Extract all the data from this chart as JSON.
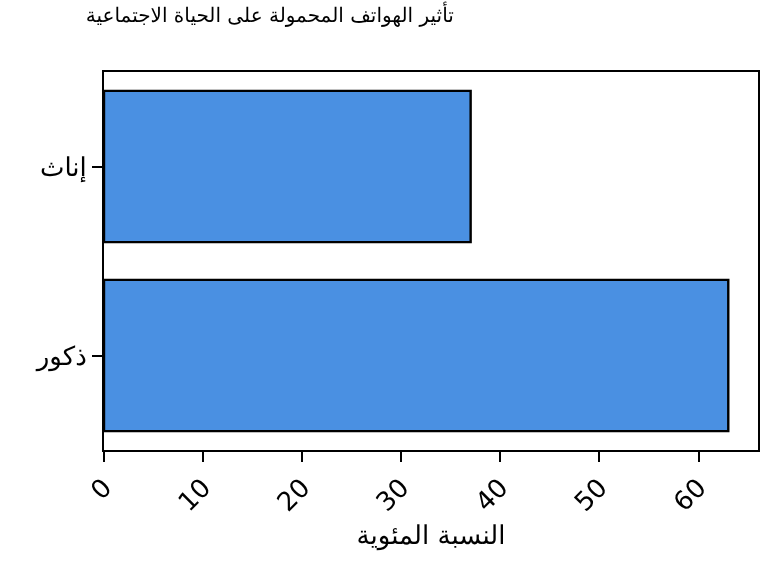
{
  "chart_data": {
    "type": "bar",
    "orientation": "horizontal",
    "title": "تأثير الهواتف المحمولة على الحياة الاجتماعية",
    "xlabel": "النسبة المئوية",
    "categories": [
      "إناث",
      "ذكور"
    ],
    "values": [
      37,
      63
    ],
    "color": "#4a90e2",
    "xlim": [
      0,
      66
    ],
    "xticks": [
      0,
      10,
      20,
      30,
      40,
      50,
      60
    ]
  }
}
